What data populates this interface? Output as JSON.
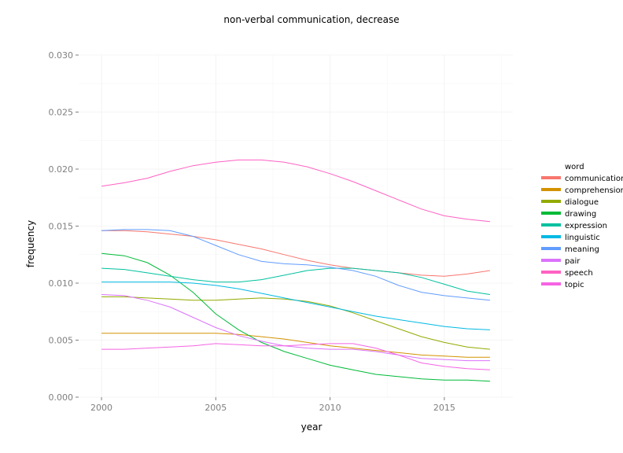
{
  "chart_data": {
    "type": "line",
    "title": "non-verbal communication, decrease",
    "xlabel": "year",
    "ylabel": "frequency",
    "xlim": [
      1999,
      2018
    ],
    "ylim": [
      0,
      0.03
    ],
    "x_ticks": [
      2000,
      2005,
      2010,
      2015
    ],
    "x_tick_labels": [
      "2000",
      "2005",
      "2010",
      "2015"
    ],
    "y_ticks": [
      0,
      0.005,
      0.01,
      0.015,
      0.02,
      0.025,
      0.03
    ],
    "y_tick_labels": [
      "0.000",
      "0.005",
      "0.010",
      "0.015",
      "0.020",
      "0.025",
      "0.030"
    ],
    "grid": true,
    "legend_title": "word",
    "legend_position": "right",
    "x": [
      2000,
      2001,
      2002,
      2003,
      2004,
      2005,
      2006,
      2007,
      2008,
      2009,
      2010,
      2011,
      2012,
      2013,
      2014,
      2015,
      2016,
      2017
    ],
    "series": [
      {
        "name": "communication",
        "color": "#F8766D",
        "values": [
          0.0146,
          0.0146,
          0.0145,
          0.0143,
          0.0141,
          0.0138,
          0.0134,
          0.013,
          0.0125,
          0.012,
          0.0116,
          0.0113,
          0.0111,
          0.0109,
          0.0107,
          0.0106,
          0.0108,
          0.0111
        ]
      },
      {
        "name": "comprehension",
        "color": "#D39200",
        "values": [
          0.0056,
          0.0056,
          0.0056,
          0.0056,
          0.0056,
          0.0056,
          0.0055,
          0.0053,
          0.0051,
          0.0048,
          0.0045,
          0.0043,
          0.0041,
          0.0039,
          0.0037,
          0.0036,
          0.0035,
          0.0035
        ]
      },
      {
        "name": "dialogue",
        "color": "#93AA00",
        "values": [
          0.0088,
          0.0088,
          0.0087,
          0.0086,
          0.0085,
          0.0085,
          0.0086,
          0.0087,
          0.0086,
          0.0084,
          0.008,
          0.0074,
          0.0067,
          0.006,
          0.0053,
          0.0048,
          0.0044,
          0.0042
        ]
      },
      {
        "name": "drawing",
        "color": "#00BA38",
        "values": [
          0.0126,
          0.0124,
          0.0118,
          0.0107,
          0.0092,
          0.0073,
          0.0059,
          0.0048,
          0.004,
          0.0034,
          0.0028,
          0.0024,
          0.002,
          0.0018,
          0.0016,
          0.0015,
          0.0015,
          0.0014
        ]
      },
      {
        "name": "expression",
        "color": "#00C19F",
        "values": [
          0.0113,
          0.0112,
          0.0109,
          0.0106,
          0.0103,
          0.0101,
          0.0101,
          0.0103,
          0.0107,
          0.0111,
          0.0113,
          0.0113,
          0.0111,
          0.0109,
          0.0105,
          0.0099,
          0.0093,
          0.009
        ]
      },
      {
        "name": "linguistic",
        "color": "#00B9E3",
        "values": [
          0.0101,
          0.0101,
          0.0101,
          0.0101,
          0.01,
          0.0098,
          0.0095,
          0.0091,
          0.0087,
          0.0083,
          0.0079,
          0.0075,
          0.0071,
          0.0068,
          0.0065,
          0.0062,
          0.006,
          0.0059
        ]
      },
      {
        "name": "meaning",
        "color": "#619CFF",
        "values": [
          0.0146,
          0.0147,
          0.0147,
          0.0146,
          0.0141,
          0.0133,
          0.0125,
          0.0119,
          0.0117,
          0.0116,
          0.0114,
          0.0111,
          0.0106,
          0.0098,
          0.0092,
          0.0089,
          0.0087,
          0.0085
        ]
      },
      {
        "name": "pair",
        "color": "#DB72FB",
        "values": [
          0.009,
          0.0089,
          0.0085,
          0.0079,
          0.007,
          0.0061,
          0.0054,
          0.0049,
          0.0045,
          0.0043,
          0.0042,
          0.0042,
          0.004,
          0.0037,
          0.0034,
          0.0033,
          0.0032,
          0.0032
        ]
      },
      {
        "name": "speech",
        "color": "#FF61C3",
        "values": [
          0.0185,
          0.0188,
          0.0192,
          0.0198,
          0.0203,
          0.0206,
          0.0208,
          0.0208,
          0.0206,
          0.0202,
          0.0196,
          0.0189,
          0.0181,
          0.0173,
          0.0165,
          0.0159,
          0.0156,
          0.0154
        ]
      },
      {
        "name": "topic",
        "color": "#F564E3",
        "values": [
          0.0042,
          0.0042,
          0.0043,
          0.0044,
          0.0045,
          0.0047,
          0.0046,
          0.0045,
          0.0045,
          0.0046,
          0.0047,
          0.0047,
          0.0043,
          0.0037,
          0.003,
          0.0027,
          0.0025,
          0.0024
        ]
      }
    ]
  }
}
